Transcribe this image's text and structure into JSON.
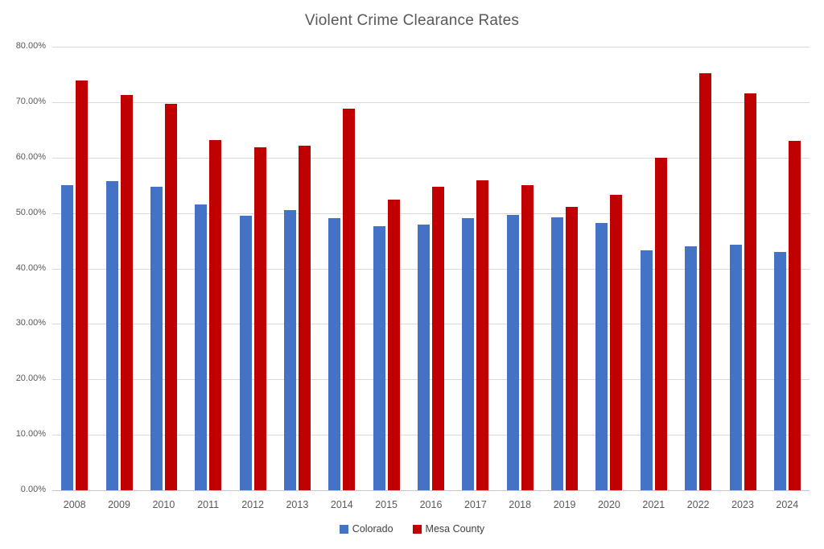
{
  "chart_data": {
    "type": "bar",
    "title": "Violent Crime Clearance Rates",
    "categories": [
      "2008",
      "2009",
      "2010",
      "2011",
      "2012",
      "2013",
      "2014",
      "2015",
      "2016",
      "2017",
      "2018",
      "2019",
      "2020",
      "2021",
      "2022",
      "2023",
      "2024"
    ],
    "series": [
      {
        "name": "Colorado",
        "color": "#4472C4",
        "values": [
          55.1,
          55.8,
          54.8,
          51.6,
          49.5,
          50.6,
          49.1,
          47.7,
          47.9,
          49.1,
          49.6,
          49.2,
          48.2,
          43.3,
          44.0,
          44.3,
          43.0
        ]
      },
      {
        "name": "Mesa County",
        "color": "#C00000",
        "values": [
          73.9,
          71.3,
          69.7,
          63.1,
          61.8,
          62.2,
          68.8,
          52.4,
          54.8,
          55.9,
          55.1,
          51.1,
          53.3,
          59.9,
          75.2,
          71.6,
          63.0
        ]
      }
    ],
    "value_unit": "percent",
    "ylim": [
      0,
      80
    ],
    "ytick_step": 10,
    "ytick_labels": [
      "0.00%",
      "10.00%",
      "20.00%",
      "30.00%",
      "40.00%",
      "50.00%",
      "60.00%",
      "70.00%",
      "80.00%"
    ],
    "grid": true,
    "legend_position": "bottom"
  },
  "colors": {
    "background": "#FFFFFF",
    "title_text": "#595959",
    "axis_text": "#595959",
    "gridline": "#D9D9D9",
    "axis_line": "#C8C8C8"
  }
}
